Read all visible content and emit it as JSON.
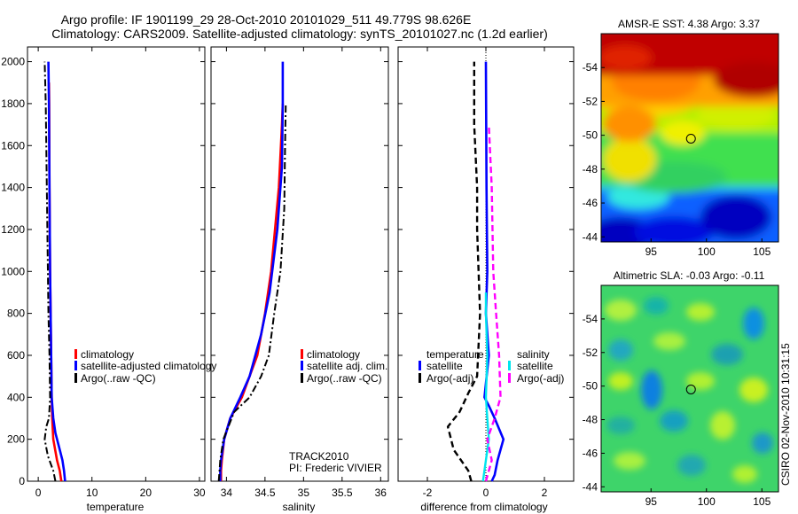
{
  "header": {
    "line1": "Argo profile: IF 1901199_29 28-Oct-2010 20101029_511 49.779S 98.626E",
    "line2": "Climatology: CARS2009. Satellite-adjusted climatology: synTS_20101027.nc (1.2d earlier)"
  },
  "side_note": "CSIRO 02-Nov-2010 10:31:15",
  "colors": {
    "climatology": "#ff0000",
    "satellite": "#0000ff",
    "argo": "#000000",
    "salinity_satellite": "#00e5ee",
    "salinity_argo": "#ff00ff"
  },
  "chart_data": [
    {
      "id": "temperature",
      "type": "line",
      "xlabel": "temperature",
      "ylabel": "",
      "xlim": [
        -2,
        31
      ],
      "ylim": [
        2070,
        0
      ],
      "xticks": [
        0,
        10,
        20,
        30
      ],
      "yticks": [
        0,
        200,
        400,
        600,
        800,
        1000,
        1200,
        1400,
        1600,
        1800,
        2000
      ],
      "ytick_labels": [
        "0",
        "200",
        "400",
        "600",
        "800",
        "1000",
        "1200",
        "1400",
        "1600",
        "1800",
        "2000"
      ],
      "series": [
        {
          "name": "climatology",
          "color": "#ff0000",
          "dash": "solid",
          "width": 2.6,
          "x": [
            4.3,
            4.0,
            3.5,
            2.8,
            2.6,
            2.5,
            2.4,
            2.3,
            2.2,
            2.1,
            2.05,
            2.0
          ],
          "y": [
            0,
            50,
            100,
            200,
            300,
            400,
            600,
            800,
            1000,
            1400,
            1800,
            1900
          ]
        },
        {
          "name": "satellite-adjusted climatology",
          "color": "#0000ff",
          "dash": "solid",
          "width": 2.6,
          "x": [
            5.0,
            4.8,
            4.5,
            4.0,
            3.2,
            2.8,
            2.5,
            2.4,
            2.3,
            2.2,
            2.1,
            2.0,
            1.9
          ],
          "y": [
            0,
            50,
            100,
            150,
            230,
            300,
            400,
            600,
            800,
            1000,
            1400,
            1800,
            2000
          ]
        },
        {
          "name": "Argo(..raw -QC)",
          "color": "#000000",
          "dash": "dashdot",
          "width": 2,
          "x": [
            3.2,
            2.8,
            1.8,
            1.2,
            1.5,
            2.0,
            2.2,
            2.1,
            1.9,
            1.8,
            1.6,
            1.4,
            1.3,
            1.2
          ],
          "y": [
            0,
            50,
            120,
            200,
            260,
            300,
            400,
            600,
            800,
            1000,
            1400,
            1800,
            1900,
            2000
          ]
        }
      ],
      "legend": {
        "placement": "lower-center",
        "entries": [
          "climatology",
          "satellite-adjusted climatology",
          "Argo(..raw -QC)"
        ]
      }
    },
    {
      "id": "salinity",
      "type": "line",
      "xlabel": "salinity",
      "ylabel": "",
      "xlim": [
        33.8,
        36.1
      ],
      "ylim": [
        2070,
        0
      ],
      "xticks": [
        34,
        34.5,
        35,
        35.5,
        36
      ],
      "series": [
        {
          "name": "climatology",
          "color": "#ff0000",
          "dash": "solid",
          "width": 2.6,
          "x": [
            33.93,
            33.93,
            33.94,
            33.97,
            34.05,
            34.2,
            34.3,
            34.4,
            34.5,
            34.58,
            34.68,
            34.72,
            34.73
          ],
          "y": [
            0,
            50,
            100,
            200,
            300,
            400,
            500,
            600,
            800,
            1000,
            1400,
            1700,
            1800
          ]
        },
        {
          "name": "satellite adj. clim.",
          "color": "#0000ff",
          "dash": "solid",
          "width": 2.6,
          "x": [
            33.92,
            33.92,
            33.93,
            33.97,
            34.05,
            34.18,
            34.3,
            34.45,
            34.56,
            34.66,
            34.72,
            34.73,
            34.73
          ],
          "y": [
            0,
            50,
            100,
            200,
            300,
            400,
            500,
            700,
            900,
            1200,
            1500,
            1800,
            2000
          ]
        },
        {
          "name": "Argo(..raw -QC)",
          "color": "#000000",
          "dash": "dashdot",
          "width": 2,
          "x": [
            33.9,
            33.91,
            33.92,
            33.96,
            34.1,
            34.3,
            34.45,
            34.55,
            34.62,
            34.7,
            34.75,
            34.76,
            34.77
          ],
          "y": [
            0,
            50,
            100,
            200,
            330,
            400,
            500,
            600,
            800,
            1000,
            1300,
            1600,
            1800
          ]
        }
      ],
      "legend": {
        "placement": "lower-center",
        "entries": [
          "climatology",
          "satellite adj. clim.",
          "Argo(..raw -QC)"
        ]
      },
      "annotations": [
        "TRACK2010",
        "PI: Frederic VIVIER"
      ]
    },
    {
      "id": "difference",
      "type": "line",
      "xlabel": "difference from climatology",
      "ylabel": "",
      "xlim": [
        -3,
        3
      ],
      "ylim": [
        2070,
        0
      ],
      "xticks": [
        -2,
        0,
        2
      ],
      "series": [
        {
          "name": "temperature satellite",
          "color": "#0000ff",
          "dash": "solid",
          "width": 2.6,
          "x": [
            0.2,
            0.3,
            0.4,
            0.6,
            0.3,
            0.1,
            -0.05,
            0.1,
            0,
            0.05,
            0.02,
            0
          ],
          "y": [
            0,
            30,
            100,
            200,
            300,
            360,
            400,
            600,
            800,
            1000,
            1400,
            2000
          ]
        },
        {
          "name": "temperature Argo(-adj)",
          "color": "#000000",
          "dash": "dashed",
          "width": 2.4,
          "x": [
            -0.5,
            -0.6,
            -1.1,
            -1.3,
            -0.9,
            -0.6,
            -0.3,
            -0.2,
            -0.3,
            -0.3,
            -0.4,
            -0.4
          ],
          "y": [
            0,
            50,
            150,
            260,
            330,
            420,
            500,
            800,
            1200,
            1400,
            1700,
            2000
          ]
        },
        {
          "name": "salinity satellite",
          "color": "#00e5ee",
          "dash": "solid",
          "width": 2.4,
          "x": [
            -0.1,
            0,
            0.1,
            0.05,
            0,
            0.05,
            0,
            0
          ],
          "y": [
            0,
            100,
            200,
            300,
            400,
            600,
            800,
            900
          ]
        },
        {
          "name": "salinity Argo(-adj)",
          "color": "#ff00ff",
          "dash": "dashed",
          "width": 2.4,
          "x": [
            0,
            0.2,
            0.05,
            0.3,
            0.5,
            0.45,
            0.35,
            0.25,
            0.2,
            0.1
          ],
          "y": [
            0,
            100,
            200,
            300,
            400,
            600,
            800,
            1000,
            1400,
            1700
          ]
        }
      ],
      "legend": {
        "placement": "lower-center",
        "groups": [
          {
            "title": "temperature",
            "entries": [
              "satellite",
              "Argo(-adj)"
            ]
          },
          {
            "title": "salinity",
            "entries": [
              "satellite",
              "Argo(-adj)"
            ]
          }
        ]
      }
    },
    {
      "id": "sst-map",
      "type": "heatmap",
      "title": "AMSR-E SST: 4.38 Argo: 3.37",
      "xlim": [
        90.5,
        106.5
      ],
      "ylim": [
        -56,
        -43.7
      ],
      "xticks": [
        95,
        100,
        105
      ],
      "yticks": [
        -44,
        -46,
        -48,
        -50,
        -52,
        -54
      ],
      "marker": {
        "lon": 98.6,
        "lat": -49.8
      }
    },
    {
      "id": "sla-map",
      "type": "heatmap",
      "title": "Altimetric SLA: -0.03 Argo: -0.11",
      "xlim": [
        90.5,
        106.5
      ],
      "ylim": [
        -56,
        -43.7
      ],
      "xticks": [
        95,
        100,
        105
      ],
      "yticks": [
        -44,
        -46,
        -48,
        -50,
        -52,
        -54
      ],
      "marker": {
        "lon": 98.6,
        "lat": -49.8
      }
    }
  ]
}
